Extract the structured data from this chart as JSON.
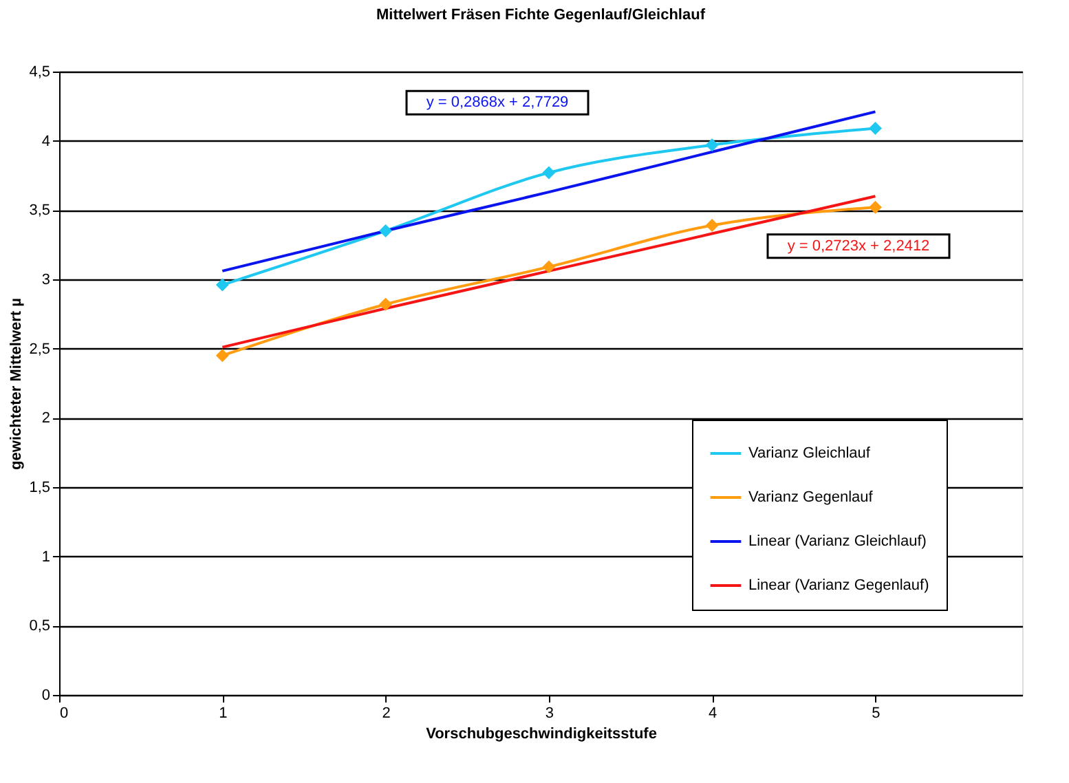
{
  "chart_data": {
    "type": "line",
    "title": "Mittelwert Fräsen Fichte Gegenlauf/Gleichlauf",
    "xlabel": "Vorschubgeschwindigkeitsstufe",
    "ylabel": "gewichteter Mittelwert µ",
    "x": [
      1,
      2,
      3,
      4,
      5
    ],
    "series": [
      {
        "name": "Varianz Gleichlauf",
        "color": "#1fc8f0",
        "values": [
          2.96,
          3.35,
          3.77,
          3.97,
          4.09
        ],
        "marker": "diamond"
      },
      {
        "name": "Varianz Gegenlauf",
        "color": "#ff9c0f",
        "values": [
          2.45,
          2.82,
          3.09,
          3.39,
          3.52
        ],
        "marker": "diamond"
      },
      {
        "name": "Linear (Varianz Gleichlauf)",
        "color": "#0a14ee",
        "values": [
          3.06,
          3.35,
          3.63,
          3.92,
          4.21
        ],
        "marker": "none"
      },
      {
        "name": "Linear (Varianz Gegenlauf)",
        "color": "#f51515",
        "values": [
          2.51,
          2.79,
          3.06,
          3.33,
          3.6
        ],
        "marker": "none"
      }
    ],
    "annotations": [
      "y = 0,2868x + 2,7729",
      "y = 0,2723x + 2,2412"
    ],
    "xlim": [
      0,
      5.9
    ],
    "xticks": [
      0,
      1,
      2,
      3,
      4,
      5
    ],
    "ylim": [
      0,
      4.5
    ],
    "yticks": [
      {
        "value": 0,
        "label": "0"
      },
      {
        "value": 0.5,
        "label": "0,5"
      },
      {
        "value": 1,
        "label": "1"
      },
      {
        "value": 1.5,
        "label": "1,5"
      },
      {
        "value": 2,
        "label": "2"
      },
      {
        "value": 2.5,
        "label": "2,5"
      },
      {
        "value": 3,
        "label": "3"
      },
      {
        "value": 3.5,
        "label": "3,5"
      },
      {
        "value": 4,
        "label": "4"
      },
      {
        "value": 4.5,
        "label": "4,5"
      }
    ],
    "grid": "y",
    "legend": "bottom right",
    "line_style": "solid"
  }
}
